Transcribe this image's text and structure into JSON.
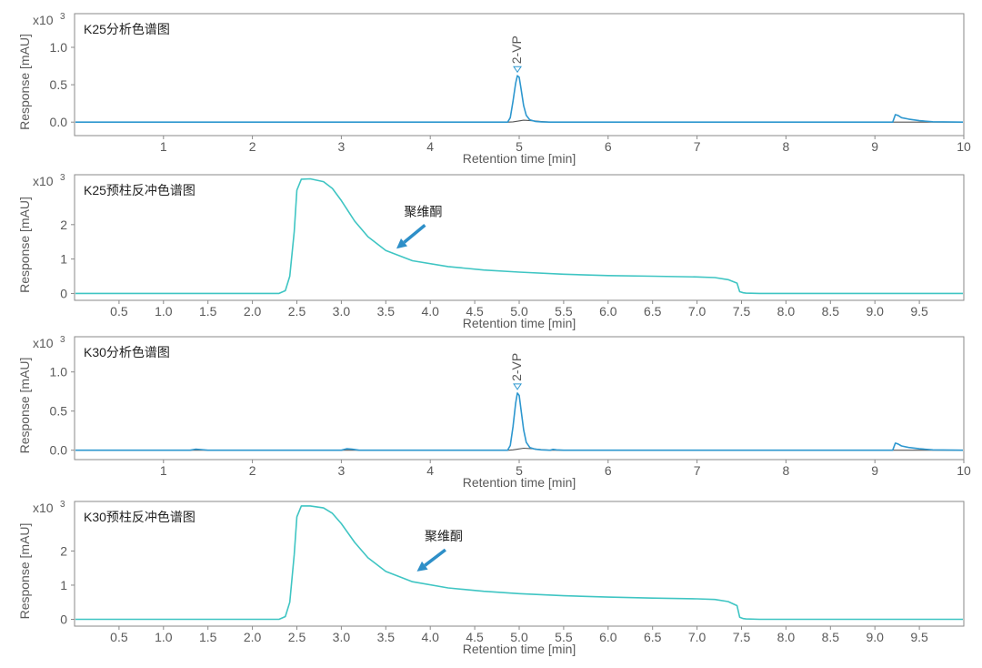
{
  "colors": {
    "frame": "#8a8a8a",
    "axis_text": "#5a5a5a",
    "blue_trace": "#2d97cf",
    "cyan_trace": "#3fc5c3",
    "baseline_trace": "#555555",
    "arrow": "#2e8fc8"
  },
  "chart_data": [
    {
      "type": "line",
      "panel_label": "K25分析色谱图",
      "multiplier_label": "x10",
      "multiplier_exp": "3",
      "ylabel": "Response [mAU]",
      "xlabel": "Retention time [min]",
      "xlim": [
        0,
        10
      ],
      "ylim": [
        -0.18,
        1.45
      ],
      "x_ticks": [
        1,
        2,
        3,
        4,
        5,
        6,
        7,
        8,
        9,
        10
      ],
      "x_tick_labels": [
        "1",
        "2",
        "3",
        "4",
        "5",
        "6",
        "7",
        "8",
        "9",
        "10"
      ],
      "y_ticks": [
        0.0,
        0.5,
        1.0
      ],
      "y_tick_labels": [
        "0.0",
        "0.5",
        "1.0"
      ],
      "series": [
        {
          "color_key": "baseline_trace",
          "x": [
            0,
            4.88,
            4.93,
            4.98,
            5.05,
            5.15,
            5.25,
            5.35,
            10
          ],
          "y": [
            0,
            0,
            0.004,
            0.012,
            0.025,
            0.018,
            0.008,
            0,
            0
          ]
        },
        {
          "color_key": "blue_trace",
          "x": [
            0,
            4.87,
            4.9,
            4.93,
            4.96,
            4.98,
            5.0,
            5.02,
            5.05,
            5.08,
            5.12,
            5.18,
            5.25,
            5.35,
            9.2,
            9.23,
            9.26,
            9.3,
            9.38,
            9.5,
            9.65,
            10
          ],
          "y": [
            0,
            0,
            0.06,
            0.28,
            0.52,
            0.62,
            0.6,
            0.45,
            0.22,
            0.09,
            0.03,
            0.01,
            0.004,
            0,
            0,
            0.1,
            0.09,
            0.06,
            0.04,
            0.02,
            0.005,
            0
          ]
        }
      ],
      "annotations": [
        {
          "text": "2-VP",
          "x": 4.98,
          "y": 0.62
        }
      ]
    },
    {
      "type": "line",
      "panel_label": "K25预柱反冲色谱图",
      "multiplier_label": "x10",
      "multiplier_exp": "3",
      "ylabel": "Response [mAU]",
      "xlabel": "Retention time [min]",
      "xlim": [
        0,
        10
      ],
      "ylim": [
        -0.2,
        3.45
      ],
      "x_ticks": [
        0.5,
        1.0,
        1.5,
        2.0,
        2.5,
        3.0,
        3.5,
        4.0,
        4.5,
        5.0,
        5.5,
        6.0,
        6.5,
        7.0,
        7.5,
        8.0,
        8.5,
        9.0,
        9.5
      ],
      "x_tick_labels": [
        "0.5",
        "1.0",
        "1.5",
        "2.0",
        "2.5",
        "3.0",
        "3.5",
        "4.0",
        "4.5",
        "5.0",
        "5.5",
        "6.0",
        "6.5",
        "7.0",
        "7.5",
        "8.0",
        "8.5",
        "9.0",
        "9.5"
      ],
      "y_ticks": [
        0,
        1,
        2
      ],
      "y_tick_labels": [
        "0",
        "1",
        "2"
      ],
      "series": [
        {
          "color_key": "cyan_trace",
          "x": [
            0,
            2.3,
            2.37,
            2.42,
            2.47,
            2.5,
            2.55,
            2.65,
            2.8,
            2.9,
            3.0,
            3.15,
            3.3,
            3.5,
            3.8,
            4.2,
            4.6,
            5.0,
            5.5,
            6.0,
            6.5,
            7.0,
            7.2,
            7.35,
            7.45,
            7.48,
            7.52,
            7.55,
            7.7,
            8.0,
            10
          ],
          "y": [
            0,
            0,
            0.08,
            0.5,
            1.8,
            3.0,
            3.32,
            3.33,
            3.25,
            3.05,
            2.7,
            2.1,
            1.65,
            1.25,
            0.95,
            0.78,
            0.68,
            0.62,
            0.56,
            0.52,
            0.5,
            0.48,
            0.46,
            0.4,
            0.3,
            0.05,
            0.02,
            0.01,
            0,
            0,
            0
          ]
        }
      ],
      "annotations": [
        {
          "text": "聚维酮",
          "x": 3.92,
          "y": 2.25,
          "arrow_to": [
            3.62,
            1.3
          ]
        }
      ]
    },
    {
      "type": "line",
      "panel_label": "K30分析色谱图",
      "multiplier_label": "x10",
      "multiplier_exp": "3",
      "ylabel": "Response [mAU]",
      "xlabel": "Retention time [min]",
      "xlim": [
        0,
        10
      ],
      "ylim": [
        -0.12,
        1.45
      ],
      "x_ticks": [
        1,
        2,
        3,
        4,
        5,
        6,
        7,
        8,
        9,
        10
      ],
      "x_tick_labels": [
        "1",
        "2",
        "3",
        "4",
        "5",
        "6",
        "7",
        "8",
        "9",
        "10"
      ],
      "y_ticks": [
        0.0,
        0.5,
        1.0
      ],
      "y_tick_labels": [
        "0.0",
        "0.5",
        "1.0"
      ],
      "series": [
        {
          "color_key": "baseline_trace",
          "x": [
            0,
            4.88,
            4.93,
            4.98,
            5.05,
            5.15,
            5.25,
            5.35,
            10
          ],
          "y": [
            0,
            0,
            0.004,
            0.012,
            0.025,
            0.018,
            0.008,
            0,
            0
          ]
        },
        {
          "color_key": "blue_trace",
          "x": [
            0,
            1.3,
            1.36,
            1.42,
            1.5,
            3.0,
            3.06,
            3.12,
            3.2,
            4.87,
            4.9,
            4.93,
            4.96,
            4.98,
            5.0,
            5.02,
            5.05,
            5.08,
            5.12,
            5.18,
            5.25,
            5.35,
            5.38,
            5.42,
            5.5,
            9.2,
            9.23,
            9.26,
            9.3,
            9.38,
            9.5,
            9.65,
            10
          ],
          "y": [
            0,
            0,
            0.012,
            0.008,
            0,
            0,
            0.018,
            0.012,
            0,
            0,
            0.06,
            0.3,
            0.6,
            0.73,
            0.7,
            0.52,
            0.26,
            0.1,
            0.035,
            0.012,
            0.004,
            0,
            0.01,
            0.004,
            0,
            0,
            0.09,
            0.08,
            0.055,
            0.035,
            0.018,
            0.005,
            0
          ]
        }
      ],
      "annotations": [
        {
          "text": "2-VP",
          "x": 4.98,
          "y": 0.73
        }
      ]
    },
    {
      "type": "line",
      "panel_label": "K30预柱反冲色谱图",
      "multiplier_label": "x10",
      "multiplier_exp": "3",
      "ylabel": "Response [mAU]",
      "xlabel": "Retention time [min]",
      "xlim": [
        0,
        10
      ],
      "ylim": [
        -0.2,
        3.45
      ],
      "x_ticks": [
        0.5,
        1.0,
        1.5,
        2.0,
        2.5,
        3.0,
        3.5,
        4.0,
        4.5,
        5.0,
        5.5,
        6.0,
        6.5,
        7.0,
        7.5,
        8.0,
        8.5,
        9.0,
        9.5
      ],
      "x_tick_labels": [
        "0.5",
        "1.0",
        "1.5",
        "2.0",
        "2.5",
        "3.0",
        "3.5",
        "4.0",
        "4.5",
        "5.0",
        "5.5",
        "6.0",
        "6.5",
        "7.0",
        "7.5",
        "8.0",
        "8.5",
        "9.0",
        "9.5"
      ],
      "y_ticks": [
        0,
        1,
        2
      ],
      "y_tick_labels": [
        "0",
        "1",
        "2"
      ],
      "series": [
        {
          "color_key": "cyan_trace",
          "x": [
            0,
            2.3,
            2.37,
            2.42,
            2.47,
            2.5,
            2.55,
            2.65,
            2.8,
            2.9,
            3.0,
            3.15,
            3.3,
            3.5,
            3.8,
            4.2,
            4.6,
            5.0,
            5.5,
            6.0,
            6.5,
            7.0,
            7.2,
            7.35,
            7.45,
            7.48,
            7.52,
            7.55,
            7.7,
            8.0,
            10
          ],
          "y": [
            0,
            0,
            0.08,
            0.5,
            1.9,
            3.0,
            3.32,
            3.32,
            3.26,
            3.1,
            2.8,
            2.25,
            1.8,
            1.4,
            1.1,
            0.92,
            0.82,
            0.75,
            0.69,
            0.65,
            0.62,
            0.6,
            0.58,
            0.52,
            0.4,
            0.06,
            0.02,
            0.01,
            0,
            0,
            0
          ]
        }
      ],
      "annotations": [
        {
          "text": "聚维酮",
          "x": 4.15,
          "y": 2.3,
          "arrow_to": [
            3.85,
            1.4
          ]
        }
      ]
    }
  ]
}
